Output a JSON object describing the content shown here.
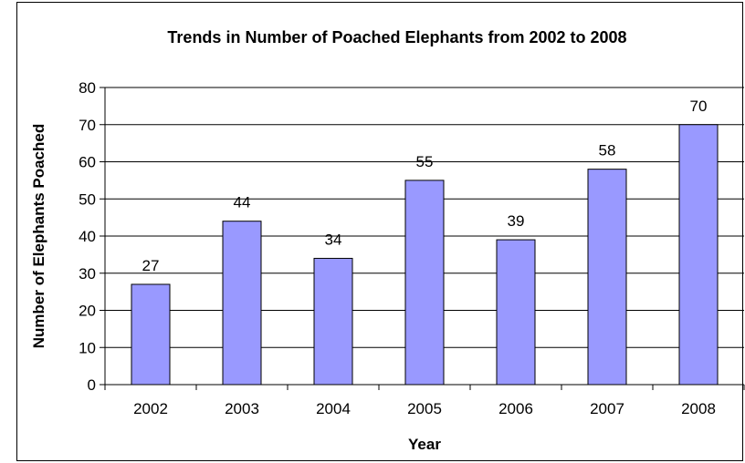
{
  "chart_data": {
    "type": "bar",
    "title": "Trends in Number of Poached Elephants from 2002 to 2008",
    "xlabel": "Year",
    "ylabel": "Number of Elephants Poached",
    "categories": [
      "2002",
      "2003",
      "2004",
      "2005",
      "2006",
      "2007",
      "2008"
    ],
    "values": [
      27,
      44,
      34,
      55,
      39,
      58,
      70
    ],
    "data_labels": [
      "27",
      "44",
      "34",
      "55",
      "39",
      "58",
      "70"
    ],
    "ylim": [
      0,
      80
    ],
    "yticks": [
      0,
      10,
      20,
      30,
      40,
      50,
      60,
      70,
      80
    ],
    "grid": true,
    "legend": "none",
    "colors": {
      "bar_fill": "#9999ff",
      "bar_stroke": "#000000",
      "grid": "#000000",
      "axis": "#000000"
    }
  }
}
